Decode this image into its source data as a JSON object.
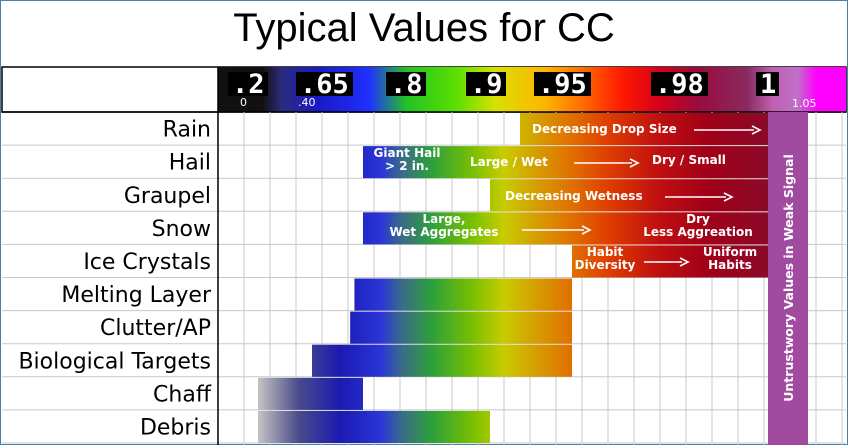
{
  "title": "Typical Values for CC",
  "colors": {
    "frame": "#4a7fb0",
    "grid": "#c8c8c8",
    "white_text": "#ffffff"
  },
  "chart_data": {
    "type": "range-bar",
    "x_scale": {
      "labels": [
        {
          "text": ".2",
          "at": 0.2
        },
        {
          "text": ".65",
          "at": 0.65
        },
        {
          "text": ".8",
          "at": 0.8
        },
        {
          "text": ".9",
          "at": 0.9
        },
        {
          "text": ".95",
          "at": 0.95
        },
        {
          "text": ".98",
          "at": 0.98
        },
        {
          "text": "1",
          "at": 1.0
        }
      ],
      "minor_labels": [
        {
          "text": "0",
          "at": 0.0
        },
        {
          "text": ".40",
          "at": 0.4
        },
        {
          "text": "1.05",
          "at": 1.05
        }
      ]
    },
    "rows": [
      {
        "label": "Rain",
        "start": 0.94,
        "end": 1.0
      },
      {
        "label": "Hail",
        "start": 0.72,
        "end": 1.0
      },
      {
        "label": "Graupel",
        "start": 0.9,
        "end": 1.0
      },
      {
        "label": "Snow",
        "start": 0.72,
        "end": 1.0
      },
      {
        "label": "Ice Crystals",
        "start": 0.96,
        "end": 1.0
      },
      {
        "label": "Melting Layer",
        "start": 0.7,
        "end": 0.96
      },
      {
        "label": "Clutter/AP",
        "start": 0.69,
        "end": 0.96
      },
      {
        "label": "Biological Targets",
        "start": 0.6,
        "end": 0.96
      },
      {
        "label": "Chaff",
        "start": 0.3,
        "end": 0.72
      },
      {
        "label": "Debris",
        "start": 0.3,
        "end": 0.9
      }
    ],
    "annotations": [
      {
        "text": "Decreasing Drop Size",
        "row": "Rain",
        "arrow": true
      },
      {
        "text": "Giant Hail\n> 2 in.",
        "row": "Hail"
      },
      {
        "text": "Large / Wet",
        "row": "Hail",
        "arrow": true
      },
      {
        "text": "Dry / Small",
        "row": "Hail"
      },
      {
        "text": "Decreasing Wetness",
        "row": "Graupel",
        "arrow": true
      },
      {
        "text": "Large,\nWet Aggregates",
        "row": "Snow",
        "arrow": true
      },
      {
        "text": "Dry\nLess Aggreation",
        "row": "Snow"
      },
      {
        "text": "Habit\nDiversity",
        "row": "Ice Crystals",
        "arrow": true
      },
      {
        "text": "Uniform\nHabits",
        "row": "Ice Crystals"
      }
    ],
    "side_label": "Untrustwory Values in Weak Signal",
    "grid": true
  }
}
